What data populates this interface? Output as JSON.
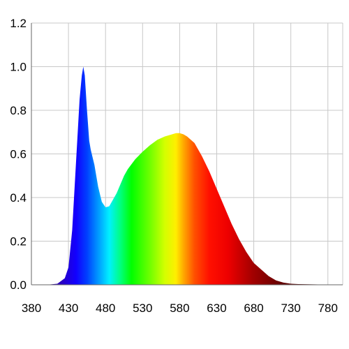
{
  "chart_data": {
    "type": "area",
    "xlabel": "",
    "ylabel": "",
    "xlim": [
      380,
      800
    ],
    "ylim": [
      0,
      1.2
    ],
    "x_ticks": [
      380,
      430,
      480,
      530,
      580,
      630,
      680,
      730,
      780
    ],
    "x_tick_labels": [
      "380",
      "430",
      "480",
      "530",
      "580",
      "630",
      "680",
      "730",
      "780"
    ],
    "y_ticks": [
      0.0,
      0.2,
      0.4,
      0.6,
      0.8,
      1.0,
      1.2
    ],
    "y_tick_labels": [
      "0.0",
      "0.2",
      "0.4",
      "0.6",
      "0.8",
      "1.0",
      "1.2"
    ],
    "grid": true,
    "fill": "spectral-gradient",
    "series": [
      {
        "x": [
          380,
          400,
          415,
          425,
          430,
          435,
          440,
          445,
          448,
          450,
          452,
          455,
          458,
          460,
          465,
          470,
          475,
          480,
          485,
          490,
          495,
          500,
          505,
          510,
          520,
          530,
          540,
          550,
          560,
          570,
          575,
          580,
          585,
          590,
          600,
          610,
          620,
          630,
          640,
          650,
          660,
          670,
          680,
          690,
          700,
          710,
          720,
          730,
          740,
          760,
          780,
          800
        ],
        "y": [
          0.0,
          0.0,
          0.005,
          0.03,
          0.08,
          0.25,
          0.55,
          0.85,
          0.96,
          1.0,
          0.96,
          0.8,
          0.66,
          0.62,
          0.55,
          0.45,
          0.38,
          0.355,
          0.36,
          0.39,
          0.42,
          0.46,
          0.5,
          0.53,
          0.575,
          0.61,
          0.64,
          0.665,
          0.68,
          0.69,
          0.695,
          0.695,
          0.69,
          0.68,
          0.65,
          0.59,
          0.52,
          0.44,
          0.36,
          0.28,
          0.21,
          0.15,
          0.1,
          0.07,
          0.04,
          0.02,
          0.01,
          0.005,
          0.003,
          0.002,
          0.001,
          0.0
        ]
      }
    ]
  }
}
